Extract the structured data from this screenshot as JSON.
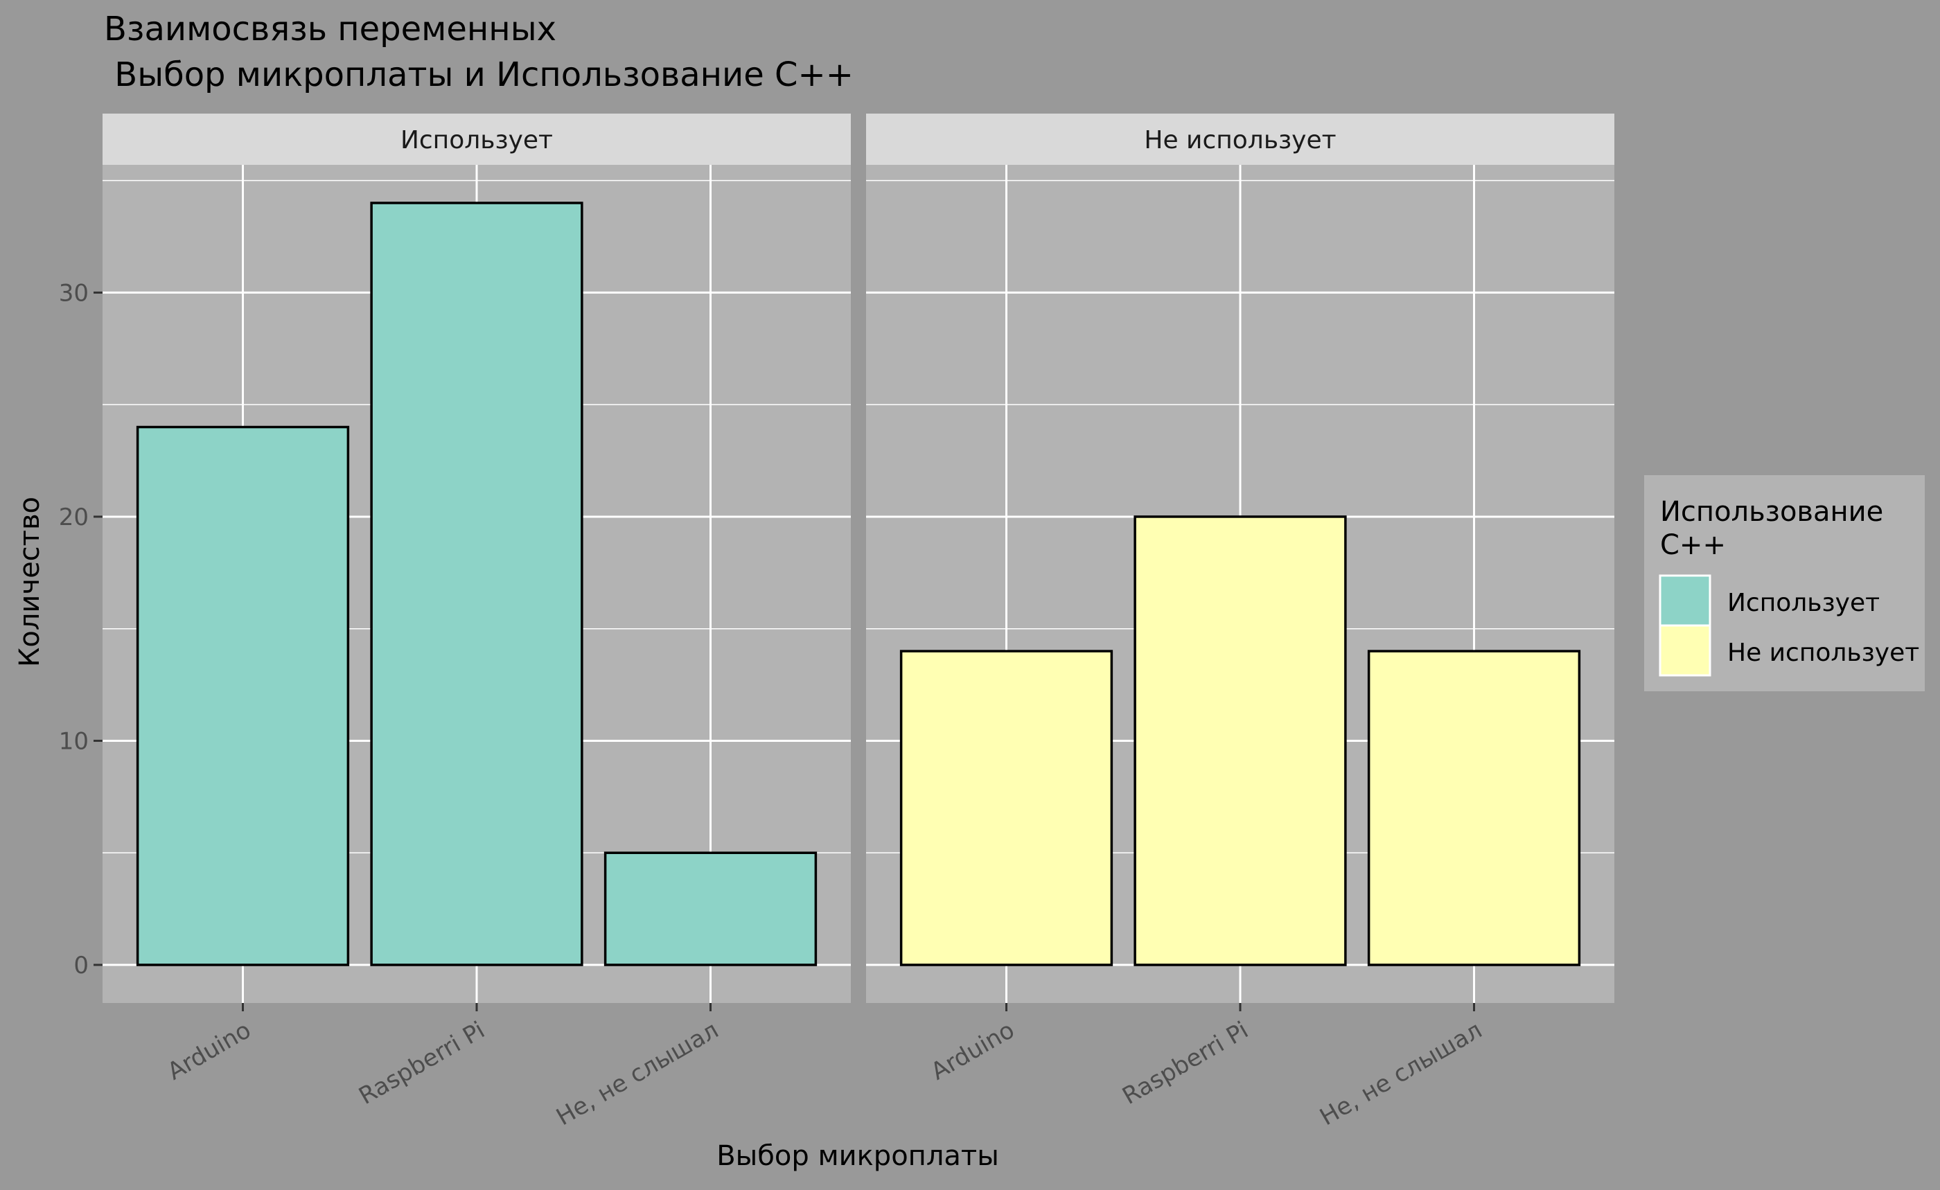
{
  "chart_data": {
    "type": "bar",
    "title": "Взаимосвязь переменных",
    "subtitle": " Выбор микроплаты и Использование С++",
    "xlabel": "Выбор микроплаты",
    "ylabel": "Количество",
    "ylim": [
      0,
      35.7
    ],
    "yticks": [
      0,
      10,
      20,
      30
    ],
    "categories": [
      "Arduino",
      "Raspberri Pi",
      "Не, не слышал"
    ],
    "facets": [
      {
        "label": "Использует",
        "series": "Использует",
        "values": [
          24,
          34,
          5
        ]
      },
      {
        "label": "Не использует",
        "series": "Не использует",
        "values": [
          14,
          20,
          14
        ]
      }
    ],
    "legend": {
      "title_line1": "Использование",
      "title_line2": "С++",
      "position": "right",
      "items": [
        {
          "label": "Использует",
          "color": "#8DD3C7"
        },
        {
          "label": "Не использует",
          "color": "#FFFFB3"
        }
      ]
    },
    "grid": true,
    "colors": {
      "background": "#999999",
      "panel": "#B3B3B3",
      "strip": "#D9D9D9",
      "grid": "#FFFFFF",
      "bar_outline": "#000000",
      "tick_text": "#4D4D4D"
    }
  }
}
